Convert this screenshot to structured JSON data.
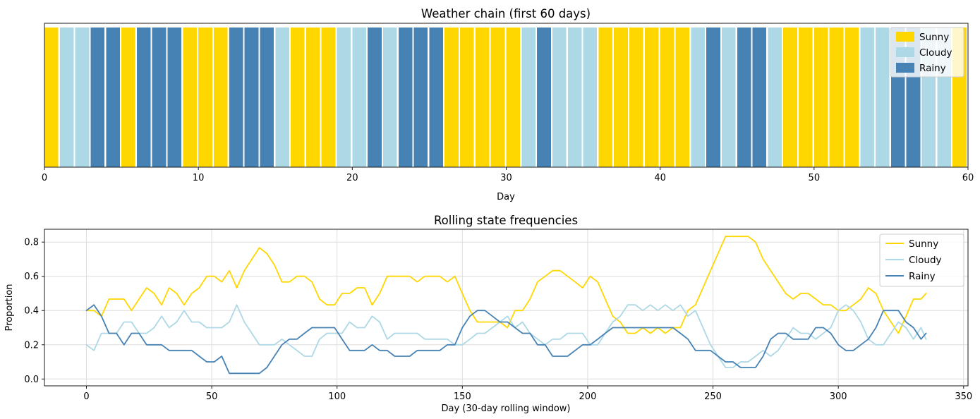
{
  "background": "#ffffff",
  "colors": {
    "sunny": "#FFD700",
    "cloudy": "#ADD8E6",
    "rainy": "#4682B4"
  },
  "chart_data": [
    {
      "type": "bar",
      "title": "Weather chain (first 60 days)",
      "xlabel": "Day",
      "xlim": [
        0,
        60
      ],
      "xticks": [
        0,
        10,
        20,
        30,
        40,
        50,
        60
      ],
      "bar_height": 1,
      "bar_width": 0.9,
      "grid": false,
      "legend_position": "upper right",
      "legend": [
        "Sunny",
        "Cloudy",
        "Rainy"
      ],
      "states": [
        "Sunny",
        "Cloudy",
        "Cloudy",
        "Rainy",
        "Rainy",
        "Sunny",
        "Rainy",
        "Rainy",
        "Rainy",
        "Sunny",
        "Sunny",
        "Sunny",
        "Rainy",
        "Rainy",
        "Rainy",
        "Cloudy",
        "Sunny",
        "Sunny",
        "Sunny",
        "Cloudy",
        "Cloudy",
        "Rainy",
        "Cloudy",
        "Rainy",
        "Rainy",
        "Rainy",
        "Sunny",
        "Sunny",
        "Sunny",
        "Sunny",
        "Sunny",
        "Cloudy",
        "Rainy",
        "Cloudy",
        "Cloudy",
        "Cloudy",
        "Sunny",
        "Sunny",
        "Sunny",
        "Sunny",
        "Sunny",
        "Sunny",
        "Cloudy",
        "Rainy",
        "Cloudy",
        "Rainy",
        "Rainy",
        "Cloudy",
        "Sunny",
        "Sunny",
        "Sunny",
        "Sunny",
        "Sunny",
        "Cloudy",
        "Cloudy",
        "Rainy",
        "Rainy",
        "Cloudy",
        "Cloudy",
        "Sunny"
      ]
    },
    {
      "type": "line",
      "title": "Rolling state frequencies",
      "xlabel": "Day (30-day rolling window)",
      "ylabel": "Proportion",
      "xlim": [
        -16.75,
        351.75
      ],
      "ylim": [
        -0.04,
        0.875
      ],
      "xticks": [
        0,
        50,
        100,
        150,
        200,
        250,
        300,
        350
      ],
      "yticks": [
        0.0,
        0.2,
        0.4,
        0.6,
        0.8
      ],
      "yticklabels": [
        "0.0",
        "0.2",
        "0.4",
        "0.6",
        "0.8"
      ],
      "grid": true,
      "legend_position": "upper right",
      "x": [
        0,
        3,
        6,
        9,
        12,
        15,
        18,
        21,
        24,
        27,
        30,
        33,
        36,
        39,
        42,
        45,
        48,
        51,
        54,
        57,
        60,
        63,
        66,
        69,
        72,
        75,
        78,
        81,
        84,
        87,
        90,
        93,
        96,
        99,
        102,
        105,
        108,
        111,
        114,
        117,
        120,
        123,
        126,
        129,
        132,
        135,
        138,
        141,
        144,
        147,
        150,
        153,
        156,
        159,
        162,
        165,
        168,
        171,
        174,
        177,
        180,
        183,
        186,
        189,
        192,
        195,
        198,
        201,
        204,
        207,
        210,
        213,
        216,
        219,
        222,
        225,
        228,
        231,
        234,
        237,
        240,
        243,
        246,
        249,
        252,
        255,
        258,
        261,
        264,
        267,
        270,
        273,
        276,
        279,
        282,
        285,
        288,
        291,
        294,
        297,
        300,
        303,
        306,
        309,
        312,
        315,
        318,
        321,
        324,
        327,
        330,
        333,
        335
      ],
      "series": [
        {
          "name": "Sunny",
          "values": [
            0.4,
            0.4,
            0.367,
            0.467,
            0.467,
            0.467,
            0.4,
            0.467,
            0.533,
            0.5,
            0.433,
            0.533,
            0.5,
            0.433,
            0.5,
            0.533,
            0.6,
            0.6,
            0.567,
            0.633,
            0.533,
            0.633,
            0.7,
            0.767,
            0.733,
            0.667,
            0.567,
            0.567,
            0.6,
            0.6,
            0.567,
            0.467,
            0.433,
            0.433,
            0.5,
            0.5,
            0.533,
            0.533,
            0.433,
            0.5,
            0.6,
            0.6,
            0.6,
            0.6,
            0.567,
            0.6,
            0.6,
            0.6,
            0.567,
            0.6,
            0.5,
            0.4,
            0.333,
            0.333,
            0.333,
            0.333,
            0.3,
            0.4,
            0.4,
            0.467,
            0.567,
            0.6,
            0.633,
            0.633,
            0.6,
            0.567,
            0.533,
            0.6,
            0.567,
            0.467,
            0.367,
            0.333,
            0.267,
            0.267,
            0.3,
            0.267,
            0.3,
            0.267,
            0.3,
            0.3,
            0.4,
            0.433,
            0.533,
            0.633,
            0.733,
            0.833,
            0.833,
            0.833,
            0.833,
            0.8,
            0.7,
            0.633,
            0.567,
            0.5,
            0.467,
            0.5,
            0.5,
            0.467,
            0.433,
            0.433,
            0.4,
            0.4,
            0.433,
            0.467,
            0.533,
            0.5,
            0.4,
            0.333,
            0.267,
            0.367,
            0.467,
            0.467,
            0.5
          ]
        },
        {
          "name": "Cloudy",
          "values": [
            0.2,
            0.167,
            0.267,
            0.267,
            0.267,
            0.333,
            0.333,
            0.267,
            0.267,
            0.3,
            0.367,
            0.3,
            0.333,
            0.4,
            0.333,
            0.333,
            0.3,
            0.3,
            0.3,
            0.333,
            0.433,
            0.333,
            0.267,
            0.2,
            0.2,
            0.2,
            0.233,
            0.2,
            0.167,
            0.133,
            0.133,
            0.233,
            0.267,
            0.267,
            0.267,
            0.333,
            0.3,
            0.3,
            0.367,
            0.333,
            0.233,
            0.267,
            0.267,
            0.267,
            0.267,
            0.233,
            0.233,
            0.233,
            0.233,
            0.2,
            0.2,
            0.233,
            0.267,
            0.267,
            0.3,
            0.333,
            0.367,
            0.3,
            0.333,
            0.267,
            0.233,
            0.2,
            0.233,
            0.233,
            0.267,
            0.267,
            0.267,
            0.2,
            0.2,
            0.267,
            0.333,
            0.367,
            0.433,
            0.433,
            0.4,
            0.433,
            0.4,
            0.433,
            0.4,
            0.433,
            0.367,
            0.4,
            0.3,
            0.2,
            0.133,
            0.067,
            0.067,
            0.1,
            0.1,
            0.133,
            0.167,
            0.133,
            0.167,
            0.233,
            0.3,
            0.267,
            0.267,
            0.233,
            0.267,
            0.3,
            0.4,
            0.433,
            0.4,
            0.333,
            0.233,
            0.2,
            0.2,
            0.267,
            0.333,
            0.3,
            0.233,
            0.3,
            0.233
          ]
        },
        {
          "name": "Rainy",
          "values": [
            0.4,
            0.433,
            0.367,
            0.267,
            0.267,
            0.2,
            0.267,
            0.267,
            0.2,
            0.2,
            0.2,
            0.167,
            0.167,
            0.167,
            0.167,
            0.133,
            0.1,
            0.1,
            0.133,
            0.033,
            0.033,
            0.033,
            0.033,
            0.033,
            0.067,
            0.133,
            0.2,
            0.233,
            0.233,
            0.267,
            0.3,
            0.3,
            0.3,
            0.3,
            0.233,
            0.167,
            0.167,
            0.167,
            0.2,
            0.167,
            0.167,
            0.133,
            0.133,
            0.133,
            0.167,
            0.167,
            0.167,
            0.167,
            0.2,
            0.2,
            0.3,
            0.367,
            0.4,
            0.4,
            0.367,
            0.333,
            0.333,
            0.3,
            0.267,
            0.267,
            0.2,
            0.2,
            0.133,
            0.133,
            0.133,
            0.167,
            0.2,
            0.2,
            0.233,
            0.267,
            0.3,
            0.3,
            0.3,
            0.3,
            0.3,
            0.3,
            0.3,
            0.3,
            0.3,
            0.267,
            0.233,
            0.167,
            0.167,
            0.167,
            0.133,
            0.1,
            0.1,
            0.067,
            0.067,
            0.067,
            0.133,
            0.233,
            0.267,
            0.267,
            0.233,
            0.233,
            0.233,
            0.3,
            0.3,
            0.267,
            0.2,
            0.167,
            0.167,
            0.2,
            0.233,
            0.3,
            0.4,
            0.4,
            0.4,
            0.333,
            0.3,
            0.233,
            0.267
          ]
        }
      ]
    }
  ]
}
